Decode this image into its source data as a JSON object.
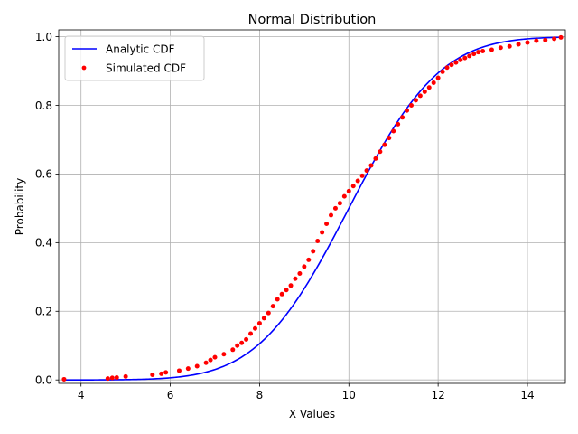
{
  "chart_data": {
    "type": "line",
    "title": "Normal Distribution",
    "xlabel": "X Values",
    "ylabel": "Probability",
    "xlim": [
      3.5,
      14.85
    ],
    "ylim": [
      -0.01,
      1.02
    ],
    "xticks": [
      4,
      6,
      8,
      10,
      12,
      14
    ],
    "yticks": [
      0.0,
      0.2,
      0.4,
      0.6,
      0.8,
      1.0
    ],
    "grid": true,
    "legend_position": "upper-left",
    "analytic_distribution": {
      "mean": 10,
      "std": 1.6
    },
    "series": [
      {
        "name": "Analytic CDF",
        "style": "line",
        "color": "#0000ff",
        "x": [
          3.6,
          4.0,
          4.5,
          5.0,
          5.5,
          6.0,
          6.5,
          7.0,
          7.5,
          8.0,
          8.5,
          9.0,
          9.5,
          10.0,
          10.5,
          11.0,
          11.5,
          12.0,
          12.5,
          13.0,
          13.5,
          14.0,
          14.5,
          14.8
        ],
        "y": [
          0.0001,
          0.0001,
          0.0003,
          0.0009,
          0.0025,
          0.0062,
          0.0143,
          0.0304,
          0.0592,
          0.1056,
          0.1736,
          0.266,
          0.3768,
          0.5,
          0.6232,
          0.734,
          0.8264,
          0.8944,
          0.9408,
          0.9696,
          0.9857,
          0.9938,
          0.9975,
          0.9987
        ]
      },
      {
        "name": "Simulated CDF",
        "style": "points",
        "color": "#ff0000",
        "x": [
          3.62,
          4.6,
          4.7,
          4.8,
          5.0,
          5.6,
          5.8,
          5.9,
          6.2,
          6.4,
          6.6,
          6.8,
          6.9,
          7.0,
          7.2,
          7.4,
          7.5,
          7.6,
          7.7,
          7.8,
          7.9,
          8.0,
          8.1,
          8.2,
          8.3,
          8.4,
          8.5,
          8.6,
          8.7,
          8.8,
          8.9,
          9.0,
          9.1,
          9.2,
          9.3,
          9.4,
          9.5,
          9.6,
          9.7,
          9.8,
          9.9,
          10.0,
          10.1,
          10.2,
          10.3,
          10.4,
          10.5,
          10.6,
          10.7,
          10.8,
          10.9,
          11.0,
          11.1,
          11.2,
          11.3,
          11.4,
          11.5,
          11.6,
          11.7,
          11.8,
          11.9,
          12.0,
          12.1,
          12.2,
          12.3,
          12.4,
          12.5,
          12.6,
          12.7,
          12.8,
          12.9,
          13.0,
          13.2,
          13.4,
          13.6,
          13.8,
          14.0,
          14.2,
          14.4,
          14.6,
          14.75
        ],
        "y": [
          0.002,
          0.004,
          0.006,
          0.007,
          0.01,
          0.015,
          0.018,
          0.022,
          0.027,
          0.033,
          0.04,
          0.05,
          0.058,
          0.066,
          0.075,
          0.088,
          0.1,
          0.108,
          0.118,
          0.135,
          0.15,
          0.165,
          0.18,
          0.195,
          0.215,
          0.235,
          0.25,
          0.262,
          0.275,
          0.295,
          0.31,
          0.33,
          0.35,
          0.375,
          0.405,
          0.43,
          0.455,
          0.48,
          0.5,
          0.515,
          0.535,
          0.55,
          0.565,
          0.58,
          0.595,
          0.61,
          0.625,
          0.645,
          0.665,
          0.685,
          0.705,
          0.725,
          0.745,
          0.765,
          0.785,
          0.8,
          0.815,
          0.828,
          0.84,
          0.852,
          0.866,
          0.88,
          0.898,
          0.91,
          0.918,
          0.925,
          0.932,
          0.938,
          0.944,
          0.95,
          0.955,
          0.958,
          0.962,
          0.968,
          0.972,
          0.978,
          0.983,
          0.988,
          0.99,
          0.994,
          0.998
        ]
      }
    ]
  }
}
